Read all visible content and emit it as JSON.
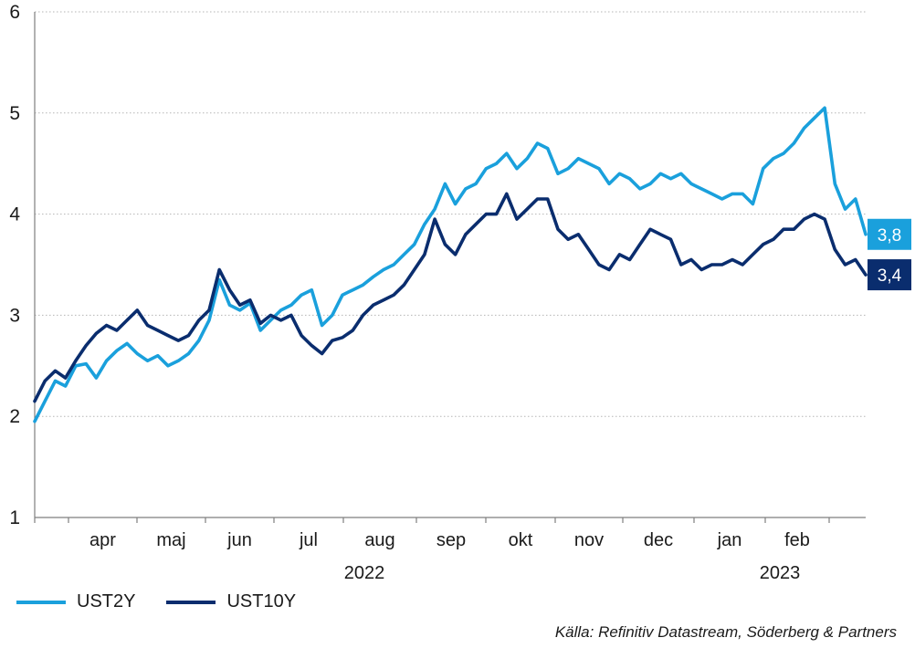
{
  "chart_data": {
    "type": "line",
    "ylim": [
      1,
      6
    ],
    "yticks": [
      "6",
      "5",
      "4",
      "3",
      "2",
      "1"
    ],
    "months": [
      "apr",
      "maj",
      "jun",
      "jul",
      "aug",
      "sep",
      "okt",
      "nov",
      "dec",
      "jan",
      "feb"
    ],
    "years": [
      "2022",
      "2023"
    ],
    "grid": "horizontal dotted",
    "legend_position": "bottom-left",
    "series": [
      {
        "name": "UST2Y",
        "color": "#1aa0dc",
        "end_label": "3,8",
        "values": [
          1.95,
          2.15,
          2.35,
          2.3,
          2.5,
          2.52,
          2.38,
          2.55,
          2.65,
          2.72,
          2.62,
          2.55,
          2.6,
          2.5,
          2.55,
          2.62,
          2.75,
          2.95,
          3.35,
          3.1,
          3.05,
          3.12,
          2.85,
          2.95,
          3.05,
          3.1,
          3.2,
          3.25,
          2.9,
          3.0,
          3.2,
          3.25,
          3.3,
          3.38,
          3.45,
          3.5,
          3.6,
          3.7,
          3.9,
          4.05,
          4.3,
          4.1,
          4.25,
          4.3,
          4.45,
          4.5,
          4.6,
          4.45,
          4.55,
          4.7,
          4.65,
          4.4,
          4.45,
          4.55,
          4.5,
          4.45,
          4.3,
          4.4,
          4.35,
          4.25,
          4.3,
          4.4,
          4.35,
          4.4,
          4.3,
          4.25,
          4.2,
          4.15,
          4.2,
          4.2,
          4.1,
          4.45,
          4.55,
          4.6,
          4.7,
          4.85,
          4.95,
          5.05,
          4.3,
          4.05,
          4.15,
          3.8
        ]
      },
      {
        "name": "UST10Y",
        "color": "#0a2d6e",
        "end_label": "3,4",
        "values": [
          2.15,
          2.35,
          2.45,
          2.38,
          2.55,
          2.7,
          2.82,
          2.9,
          2.85,
          2.95,
          3.05,
          2.9,
          2.85,
          2.8,
          2.75,
          2.8,
          2.95,
          3.05,
          3.45,
          3.25,
          3.1,
          3.15,
          2.92,
          3.0,
          2.95,
          3.0,
          2.8,
          2.7,
          2.62,
          2.75,
          2.78,
          2.85,
          3.0,
          3.1,
          3.15,
          3.2,
          3.3,
          3.45,
          3.6,
          3.95,
          3.7,
          3.6,
          3.8,
          3.9,
          4.0,
          4.0,
          4.2,
          3.95,
          4.05,
          4.15,
          4.15,
          3.85,
          3.75,
          3.8,
          3.65,
          3.5,
          3.45,
          3.6,
          3.55,
          3.7,
          3.85,
          3.8,
          3.75,
          3.5,
          3.55,
          3.45,
          3.5,
          3.5,
          3.55,
          3.5,
          3.6,
          3.7,
          3.75,
          3.85,
          3.85,
          3.95,
          4.0,
          3.95,
          3.65,
          3.5,
          3.55,
          3.4
        ]
      }
    ]
  },
  "source": "Källa: Refinitiv Datastream, Söderberg & Partners"
}
